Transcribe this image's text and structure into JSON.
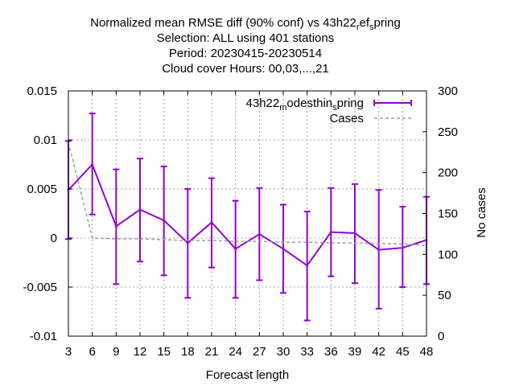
{
  "chart_data": {
    "type": "line",
    "title_lines": [
      {
        "parts": [
          {
            "text": "Normalized mean RMSE diff (90% conf) vs 43h22",
            "sub": false
          },
          {
            "text": "r",
            "sub": true
          },
          {
            "text": "ef",
            "sub": false
          },
          {
            "text": "s",
            "sub": true
          },
          {
            "text": "pring",
            "sub": false
          }
        ]
      },
      {
        "parts": [
          {
            "text": "Selection: ALL using   401 stations",
            "sub": false
          }
        ]
      },
      {
        "parts": [
          {
            "text": "Period: 20230415-20230514",
            "sub": false
          }
        ]
      },
      {
        "parts": [
          {
            "text": "Cloud cover   Hours:  00,03,...,21",
            "sub": false
          }
        ]
      }
    ],
    "xlabel": "Forecast length",
    "ylabel": "",
    "y2label": "No cases",
    "x": [
      3,
      6,
      9,
      12,
      15,
      18,
      21,
      24,
      27,
      30,
      33,
      36,
      39,
      42,
      45,
      48
    ],
    "xlim": [
      3,
      48
    ],
    "ylim": [
      -0.01,
      0.015
    ],
    "y2lim": [
      0,
      300
    ],
    "x_ticks": [
      "3",
      "6",
      "9",
      "12",
      "15",
      "18",
      "21",
      "24",
      "27",
      "30",
      "33",
      "36",
      "39",
      "42",
      "45",
      "48"
    ],
    "y_ticks": [
      {
        "v": 0.015,
        "label": "0.015"
      },
      {
        "v": 0.01,
        "label": "0.01"
      },
      {
        "v": 0.005,
        "label": "0.005"
      },
      {
        "v": 0,
        "label": "0"
      },
      {
        "v": -0.005,
        "label": "-0.005"
      },
      {
        "v": -0.01,
        "label": "-0.01"
      }
    ],
    "y2_ticks": [
      {
        "v": 300,
        "label": "300"
      },
      {
        "v": 250,
        "label": "250"
      },
      {
        "v": 200,
        "label": "200"
      },
      {
        "v": 150,
        "label": "150"
      },
      {
        "v": 100,
        "label": "100"
      },
      {
        "v": 50,
        "label": "50"
      },
      {
        "v": 0,
        "label": "0"
      }
    ],
    "grid": true,
    "legend_position": "top-right",
    "series": [
      {
        "name_parts": [
          {
            "text": "43h22",
            "sub": false
          },
          {
            "text": "m",
            "sub": true
          },
          {
            "text": "odesthin",
            "sub": false
          },
          {
            "text": "s",
            "sub": true
          },
          {
            "text": "pring",
            "sub": false
          }
        ],
        "axis": "y",
        "style": "line-errorbars",
        "color": "#9400d3",
        "values": [
          0.0049,
          0.0075,
          0.0012,
          0.0029,
          0.0018,
          -0.0005,
          0.0016,
          -0.0011,
          0.0004,
          -0.0011,
          -0.0028,
          0.0006,
          0.0005,
          -0.0012,
          -0.001,
          -0.0002
        ],
        "err_low": [
          -0.0001,
          0.0024,
          -0.0047,
          -0.0024,
          -0.0038,
          -0.0061,
          -0.003,
          -0.0061,
          -0.0043,
          -0.0056,
          -0.0084,
          -0.0039,
          -0.0046,
          -0.0072,
          -0.005,
          -0.0047
        ],
        "err_high": [
          0.0099,
          0.0127,
          0.007,
          0.0081,
          0.0073,
          0.005,
          0.0061,
          0.0038,
          0.0051,
          0.0034,
          0.0027,
          0.0051,
          0.0055,
          0.0049,
          0.0032,
          0.0042
        ]
      },
      {
        "name": "Cases",
        "axis": "y2",
        "style": "dashed",
        "color": "#a0a0a0",
        "values": [
          237,
          120,
          119,
          119,
          118,
          117,
          117,
          116,
          116,
          115,
          115,
          114,
          114,
          113,
          113,
          111
        ]
      }
    ]
  }
}
